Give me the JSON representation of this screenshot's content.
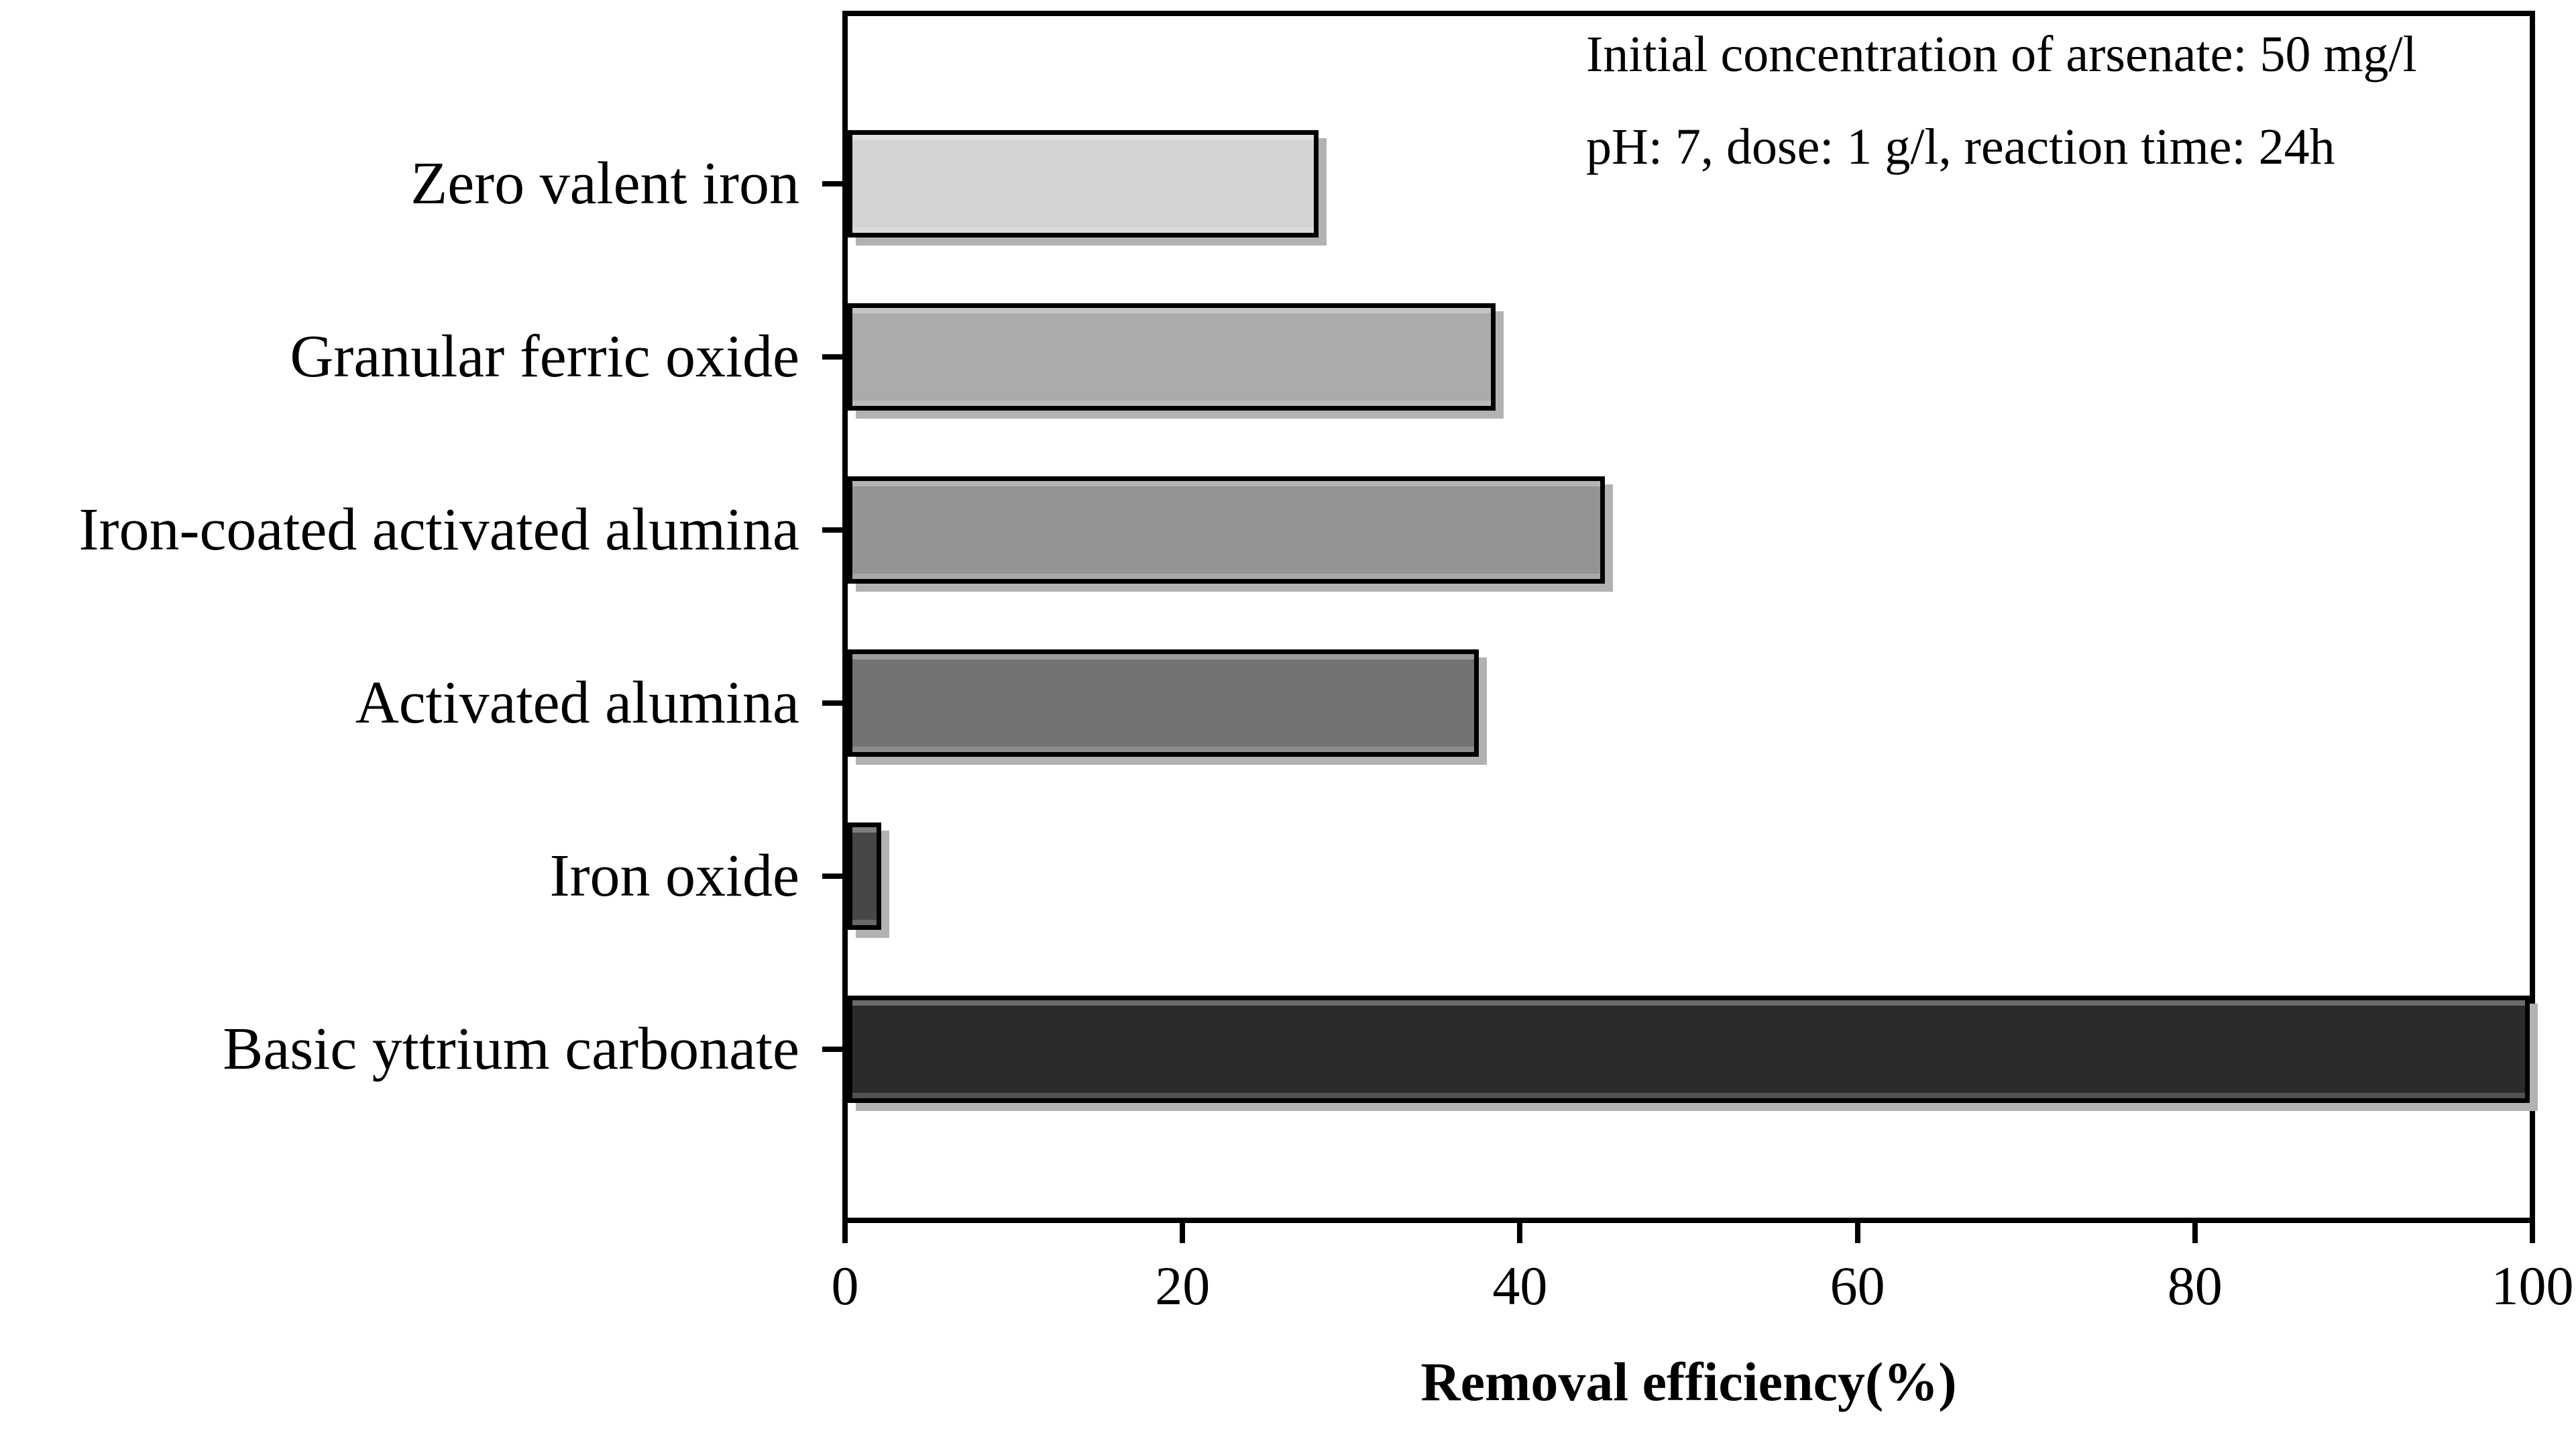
{
  "chart_data": {
    "type": "bar",
    "orientation": "horizontal",
    "title": "",
    "xlabel": "Removal efficiency(%)",
    "ylabel": "",
    "xlim": [
      0,
      100
    ],
    "x_ticks": [
      0,
      20,
      40,
      60,
      80,
      100
    ],
    "grid": false,
    "legend": "none",
    "categories": [
      "Zero valent iron",
      "Granular ferric oxide",
      "Iron-coated activated alumina",
      "Activated alumina",
      "Iron oxide",
      "Basic yttrium carbonate"
    ],
    "values": [
      28,
      38.5,
      45,
      37.5,
      2,
      100
    ],
    "bar_colors": [
      "#d3d3d3",
      "#ababab",
      "#949494",
      "#737373",
      "#474747",
      "#2b2b2b"
    ],
    "bar_border_color": "#000000",
    "bar_shadow_color": "#b2b2b2",
    "axis_color": "#000000",
    "annotation_line1": "Initial concentration of arsenate: 50 mg/l",
    "annotation_line2": "pH: 7, dose: 1 g/l, reaction time: 24h"
  }
}
